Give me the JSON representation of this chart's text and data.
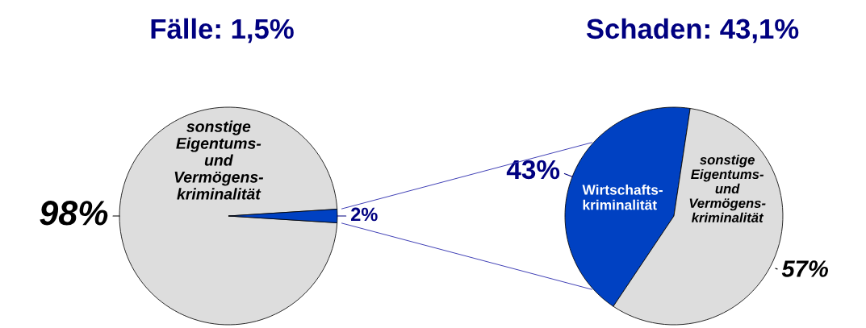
{
  "chart_data": [
    {
      "type": "pie",
      "title": "Fälle: 1,5%",
      "categories": [
        "sonstige\nEigentums-\nund\nVermögens-\nkriminalität",
        null
      ],
      "values": [
        98,
        2
      ],
      "colors": [
        "#dddddd",
        "#0041c2"
      ],
      "value_labels": [
        "98%",
        "2%"
      ]
    },
    {
      "type": "pie",
      "title": "Schaden: 43,1%",
      "categories": [
        "Wirtschafts-\nkriminalität",
        "sonstige\nEigentums-\nund\nVermögens-\nkriminalität"
      ],
      "values": [
        43,
        57
      ],
      "colors": [
        "#0041c2",
        "#dddddd"
      ],
      "value_labels": [
        "43%",
        "57%"
      ]
    }
  ]
}
